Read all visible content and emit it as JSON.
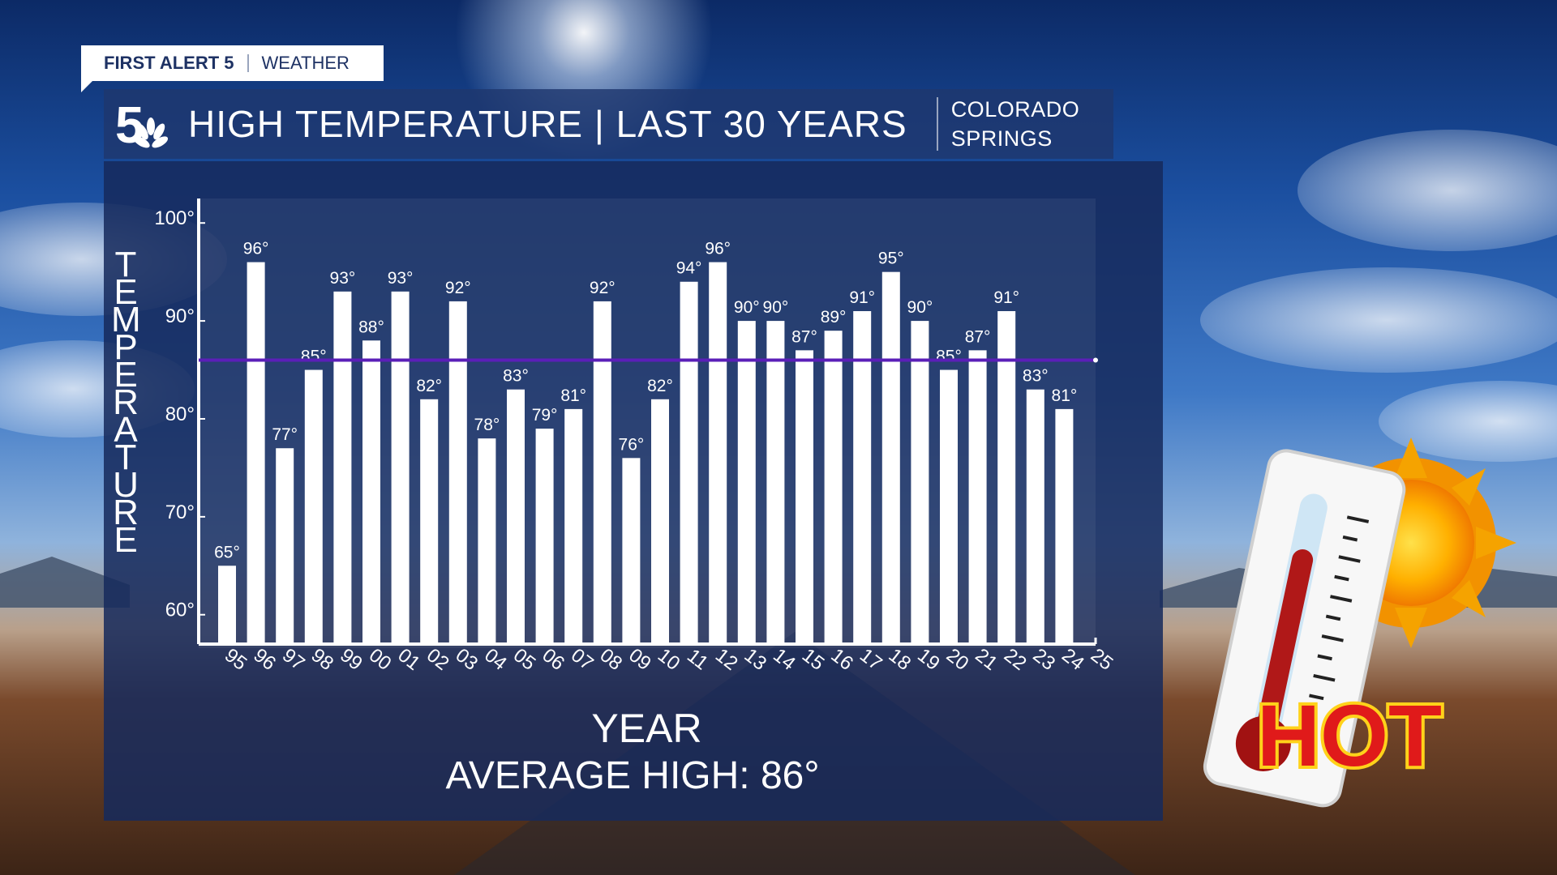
{
  "brand": {
    "name": "FIRST ALERT 5",
    "section": "WEATHER"
  },
  "header": {
    "title": "HIGH TEMPERATURE | LAST 30 YEARS",
    "location_line1": "COLORADO",
    "location_line2": "SPRINGS"
  },
  "graphic": {
    "hot_text": "HOT"
  },
  "colors": {
    "bar": "#ffffff",
    "average_line": "#5b1fb8",
    "panel": "#1a3266",
    "hot_text": "#e01a1a",
    "hot_outline": "#ffd21a"
  },
  "chart_data": {
    "type": "bar",
    "ylabel": "TEMPERATURE",
    "xlabel": "YEAR",
    "ylim": [
      57,
      102.5
    ],
    "y_ticks": [
      60,
      70,
      80,
      90,
      100
    ],
    "y_tick_labels": [
      "60°",
      "70°",
      "80°",
      "90°",
      "100°"
    ],
    "categories": [
      "95",
      "96",
      "97",
      "98",
      "99",
      "00",
      "01",
      "02",
      "03",
      "04",
      "05",
      "06",
      "07",
      "08",
      "09",
      "10",
      "11",
      "12",
      "13",
      "14",
      "15",
      "16",
      "17",
      "18",
      "19",
      "20",
      "21",
      "22",
      "23",
      "24",
      "25"
    ],
    "values": [
      65,
      96,
      77,
      85,
      93,
      88,
      93,
      82,
      92,
      78,
      83,
      79,
      81,
      92,
      76,
      82,
      94,
      96,
      90,
      90,
      87,
      89,
      91,
      95,
      90,
      85,
      87,
      91,
      83,
      81,
      null
    ],
    "value_labels": [
      "65°",
      "96°",
      "77°",
      "85°",
      "93°",
      "88°",
      "93°",
      "82°",
      "92°",
      "78°",
      "83°",
      "79°",
      "81°",
      "92°",
      "76°",
      "82°",
      "94°",
      "96°",
      "90°",
      "90°",
      "87°",
      "89°",
      "91°",
      "95°",
      "90°",
      "85°",
      "87°",
      "91°",
      "83°",
      "81°",
      ""
    ],
    "average": 86,
    "average_label": "AVERAGE HIGH: 86°",
    "grid": false,
    "legend": "none"
  }
}
